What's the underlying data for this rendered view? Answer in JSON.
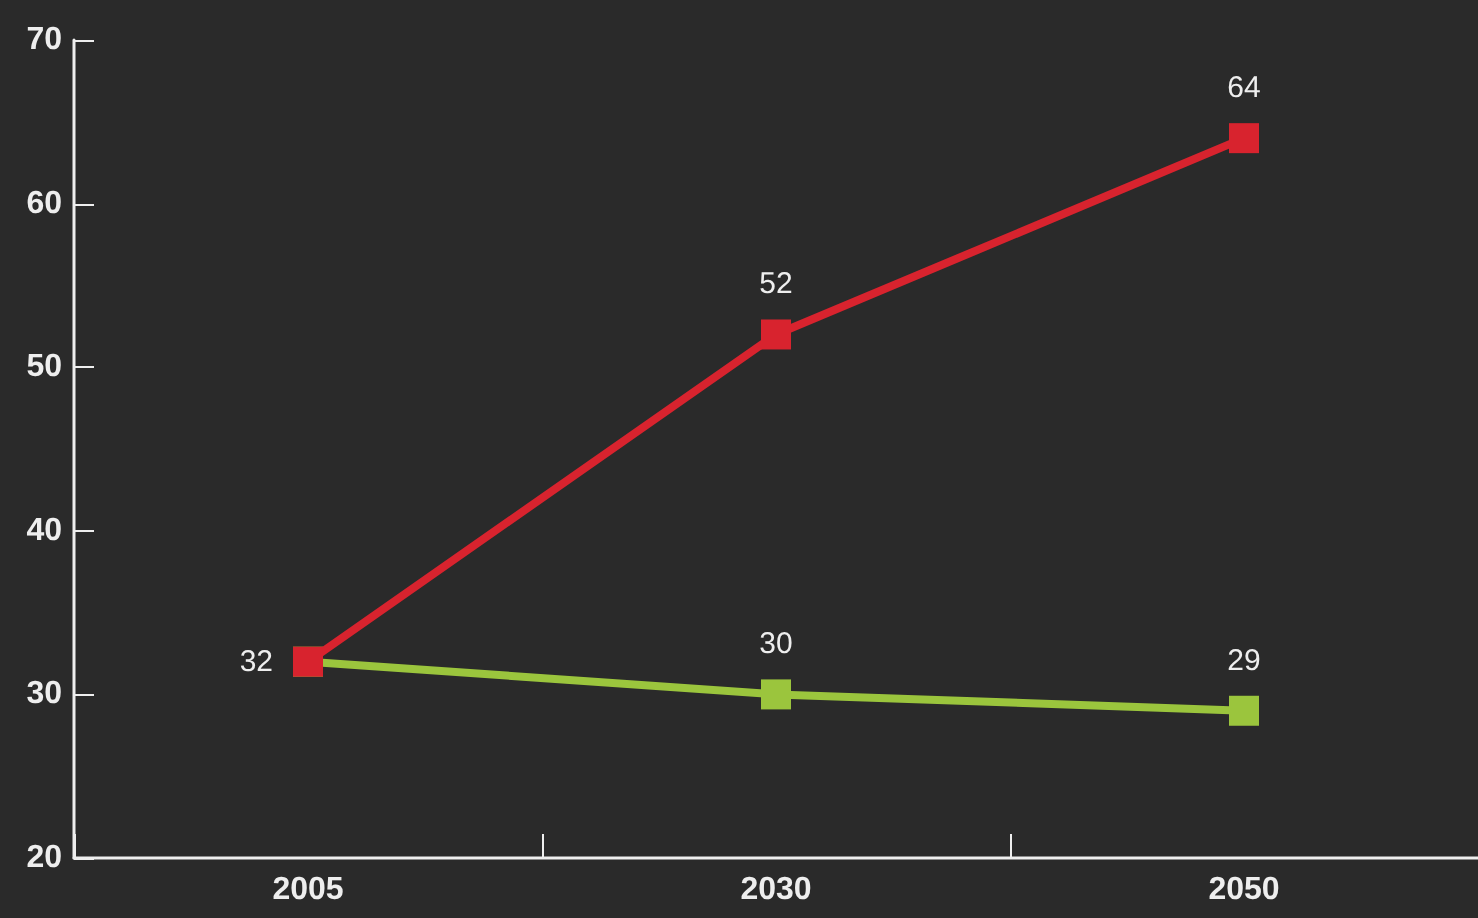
{
  "chart_data": {
    "type": "line",
    "categories": [
      "2005",
      "2030",
      "2050"
    ],
    "series": [
      {
        "color": "#d8232e",
        "values": [
          32,
          52,
          64
        ],
        "value_labels": [
          null,
          "52",
          "64"
        ]
      },
      {
        "color": "#9bc53d",
        "values": [
          32,
          30,
          29
        ],
        "value_labels": [
          "32",
          "30",
          "29"
        ]
      }
    ],
    "ylim": [
      20,
      70
    ],
    "yticks": [
      20,
      30,
      40,
      50,
      60,
      70
    ],
    "grid": false,
    "marker": "square",
    "line_style": "solid"
  }
}
